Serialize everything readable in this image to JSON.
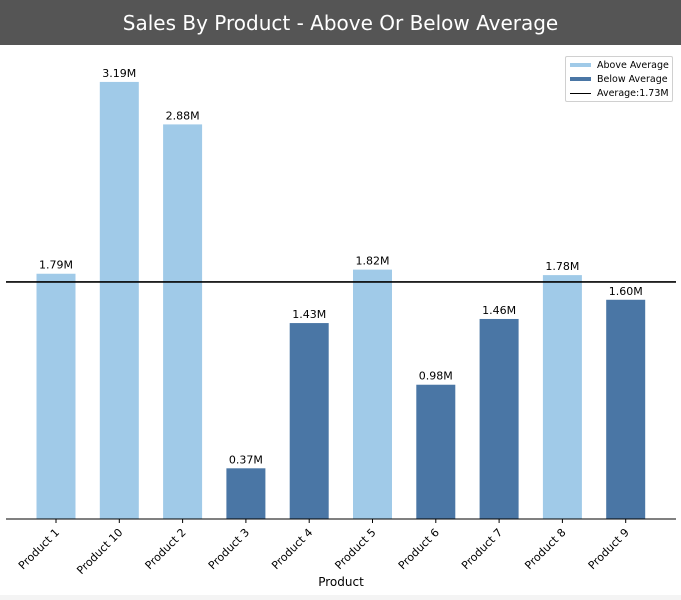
{
  "chart_data": {
    "type": "bar",
    "title": "Sales By Product - Above Or Below Average",
    "xlabel": "Product",
    "ylabel": "",
    "categories": [
      "Product 1",
      "Product 10",
      "Product 2",
      "Product 3",
      "Product 4",
      "Product 5",
      "Product 6",
      "Product 7",
      "Product 8",
      "Product 9"
    ],
    "values": [
      1.79,
      3.19,
      2.88,
      0.37,
      1.43,
      1.82,
      0.98,
      1.46,
      1.78,
      1.6
    ],
    "value_labels": [
      "1.79M",
      "3.19M",
      "2.88M",
      "0.37M",
      "1.43M",
      "1.82M",
      "0.98M",
      "1.46M",
      "1.78M",
      "1.60M"
    ],
    "average": 1.73,
    "ylim": [
      0,
      3.35
    ],
    "grid": false,
    "legend_position": "top-right",
    "legend": {
      "above": "Above Average",
      "below": "Below Average",
      "average": "Average:1.73M"
    },
    "colors": {
      "above": "#a0cae8",
      "below": "#4a76a5",
      "average_line": "#000000"
    }
  }
}
